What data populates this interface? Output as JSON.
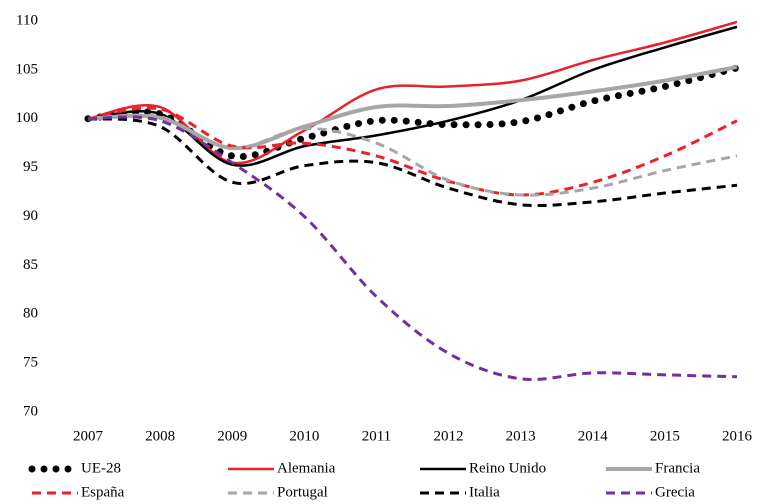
{
  "chart_data": {
    "type": "line",
    "categories": [
      "2007",
      "2008",
      "2009",
      "2010",
      "2011",
      "2012",
      "2013",
      "2014",
      "2015",
      "2016"
    ],
    "series": [
      {
        "name": "UE-28",
        "color": "#000000",
        "style": "dotted",
        "values": [
          100,
          100.5,
          96.2,
          98.0,
          99.8,
          99.4,
          99.7,
          101.8,
          103.3,
          105.2
        ]
      },
      {
        "name": "Alemania",
        "color": "#e8212a",
        "style": "solid",
        "values": [
          100,
          101.2,
          95.5,
          98.8,
          103.0,
          103.3,
          103.9,
          106.0,
          107.8,
          109.9
        ]
      },
      {
        "name": "Reino Unido",
        "color": "#000000",
        "style": "solid",
        "values": [
          100,
          100.5,
          95.3,
          97.2,
          98.3,
          99.8,
          101.9,
          105.0,
          107.3,
          109.4
        ]
      },
      {
        "name": "Francia",
        "color": "#a6a6a6",
        "style": "solid",
        "values": [
          100,
          100.1,
          97.0,
          99.2,
          101.2,
          101.3,
          101.9,
          102.8,
          103.9,
          105.3
        ]
      },
      {
        "name": "España",
        "color": "#e8212a",
        "style": "dashed",
        "values": [
          100,
          101.0,
          97.2,
          97.5,
          96.2,
          93.6,
          92.2,
          93.5,
          96.2,
          99.8
        ]
      },
      {
        "name": "Portugal",
        "color": "#a6a6a6",
        "style": "dashed",
        "values": [
          100,
          100.2,
          97.0,
          99.0,
          97.5,
          93.7,
          92.2,
          92.9,
          94.7,
          96.2
        ]
      },
      {
        "name": "Italia",
        "color": "#000000",
        "style": "dashed",
        "values": [
          100,
          99.2,
          93.5,
          95.2,
          95.5,
          92.9,
          91.2,
          91.5,
          92.4,
          93.2
        ]
      },
      {
        "name": "Grecia",
        "color": "#7030a0",
        "style": "dashed",
        "values": [
          100,
          99.8,
          95.5,
          90.0,
          81.8,
          76.0,
          73.4,
          74.0,
          73.8,
          73.6
        ]
      }
    ],
    "ylim": [
      70,
      110
    ],
    "yticks": [
      70,
      75,
      80,
      85,
      90,
      95,
      100,
      105,
      110
    ],
    "grid": false,
    "legend": "bottom"
  }
}
